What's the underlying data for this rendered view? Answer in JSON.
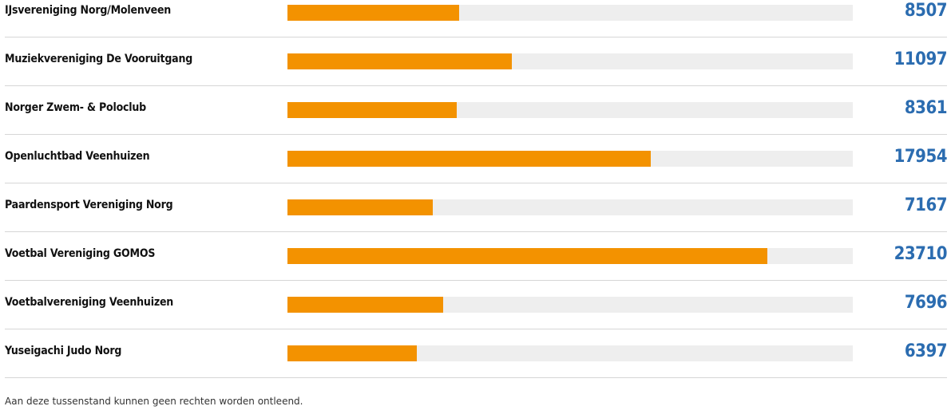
{
  "chart_data": {
    "type": "bar",
    "orientation": "horizontal",
    "categories": [
      "IJsvereniging Norg/Molenveen",
      "Muziekvereniging De Vooruitgang",
      "Norger Zwem- & Poloclub",
      "Openluchtbad Veenhuizen",
      "Paardensport Vereniging Norg",
      "Voetbal Vereniging GOMOS",
      "Voetbalvereniging Veenhuizen",
      "Yuseigachi Judo Norg"
    ],
    "values": [
      8507,
      11097,
      8361,
      17954,
      7167,
      23710,
      7696,
      6397
    ],
    "xlim": [
      0,
      27950
    ],
    "grid": false,
    "legend": "none",
    "colors": {
      "bar": "#f39200",
      "track": "#eeeeee",
      "value": "#2b6cb0"
    }
  },
  "footnote": "Aan deze tussenstand kunnen geen rechten worden ontleend."
}
